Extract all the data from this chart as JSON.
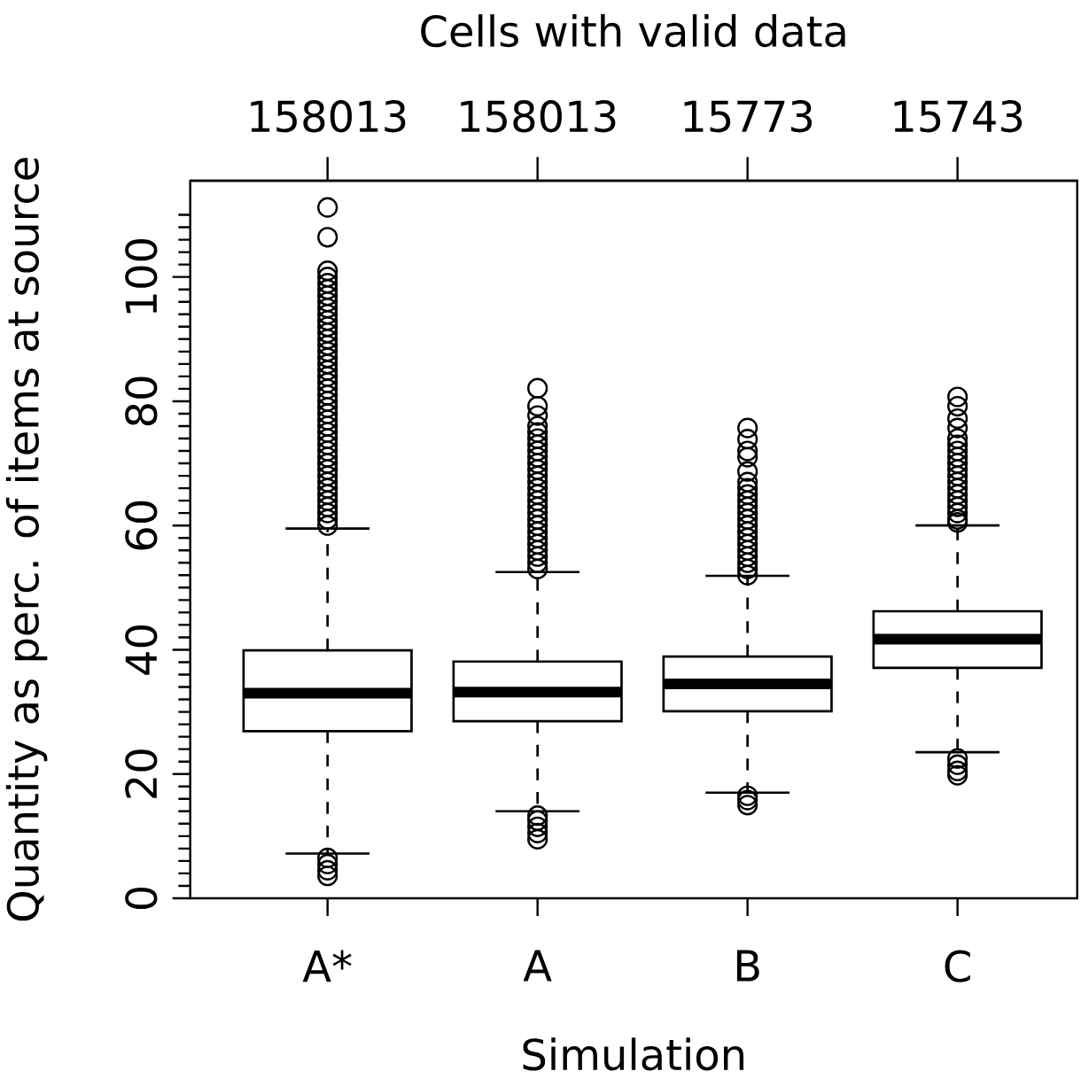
{
  "chart_data": {
    "type": "box",
    "categories": [
      "A*",
      "A",
      "B",
      "C"
    ],
    "xlabel": "Simulation",
    "ylabel": "Quantity as perc. of items at source",
    "x2label": "Cells with valid data",
    "annotations": [
      "158013",
      "158013",
      "15773",
      "15743"
    ],
    "ylim": [
      0,
      115.5
    ],
    "yticks": [
      0,
      {
        "value": 2,
        "label": null
      },
      {
        "value": 4,
        "label": null
      },
      {
        "value": 6,
        "label": null
      },
      {
        "value": 8,
        "label": null
      },
      {
        "value": 10,
        "label": null
      },
      {
        "value": 12,
        "label": null
      },
      {
        "value": 14,
        "label": null
      },
      {
        "value": 16,
        "label": null
      },
      {
        "value": 18,
        "label": null
      },
      20,
      {
        "value": 22,
        "label": null
      },
      {
        "value": 24,
        "label": null
      },
      {
        "value": 26,
        "label": null
      },
      {
        "value": 28,
        "label": null
      },
      {
        "value": 30,
        "label": null
      },
      {
        "value": 32,
        "label": null
      },
      {
        "value": 34,
        "label": null
      },
      {
        "value": 36,
        "label": null
      },
      {
        "value": 38,
        "label": null
      },
      40,
      {
        "value": 42,
        "label": null
      },
      {
        "value": 44,
        "label": null
      },
      {
        "value": 46,
        "label": null
      },
      {
        "value": 48,
        "label": null
      },
      {
        "value": 50,
        "label": null
      },
      {
        "value": 52,
        "label": null
      },
      {
        "value": 54,
        "label": null
      },
      {
        "value": 56,
        "label": null
      },
      {
        "value": 58,
        "label": null
      },
      60,
      {
        "value": 62,
        "label": null
      },
      {
        "value": 64,
        "label": null
      },
      {
        "value": 66,
        "label": null
      },
      {
        "value": 68,
        "label": null
      },
      {
        "value": 70,
        "label": null
      },
      {
        "value": 72,
        "label": null
      },
      {
        "value": 74,
        "label": null
      },
      {
        "value": 76,
        "label": null
      },
      {
        "value": 78,
        "label": null
      },
      80,
      {
        "value": 82,
        "label": null
      },
      {
        "value": 84,
        "label": null
      },
      {
        "value": 86,
        "label": null
      },
      {
        "value": 88,
        "label": null
      },
      {
        "value": 90,
        "label": null
      },
      {
        "value": 92,
        "label": null
      },
      {
        "value": 94,
        "label": null
      },
      {
        "value": 96,
        "label": null
      },
      {
        "value": 98,
        "label": null
      },
      100,
      {
        "value": 102,
        "label": null
      },
      {
        "value": 104,
        "label": null
      },
      {
        "value": 106,
        "label": null
      },
      {
        "value": 108,
        "label": null
      },
      {
        "value": 110,
        "label": null
      }
    ],
    "marker": "circle",
    "boxes": [
      {
        "low": 7.2,
        "q1": 26.9,
        "median": 33.0,
        "q3": 39.9,
        "high": 59.5,
        "outliers": [
          3.6,
          4.5,
          5.5,
          6.5,
          60,
          61,
          62,
          63,
          64,
          65,
          66,
          67,
          68,
          69,
          70,
          71,
          72,
          73,
          74,
          75,
          76,
          77,
          78,
          79,
          80,
          81,
          82,
          83,
          84,
          85,
          86,
          87,
          88,
          89,
          90,
          91,
          92,
          93,
          94,
          95,
          96,
          97,
          98,
          99,
          100,
          101,
          106.4,
          111.2
        ]
      },
      {
        "low": 14.0,
        "q1": 28.5,
        "median": 33.2,
        "q3": 38.1,
        "high": 52.5,
        "outliers": [
          9.5,
          10.5,
          11.5,
          12.5,
          13.3,
          53,
          54,
          55,
          56,
          57,
          58,
          59,
          60,
          61,
          62,
          63,
          64,
          65,
          66,
          67,
          68,
          69,
          70,
          71,
          72,
          73,
          74,
          75,
          76,
          77.7,
          79.2,
          82.1
        ]
      },
      {
        "low": 17.0,
        "q1": 30.1,
        "median": 34.5,
        "q3": 38.9,
        "high": 51.9,
        "outliers": [
          15.0,
          15.8,
          16.5,
          52,
          53,
          54,
          55,
          56,
          57,
          58,
          59,
          60,
          61,
          62,
          63,
          64,
          65,
          66,
          67,
          68.7,
          71,
          72,
          73.9,
          75.7
        ]
      },
      {
        "low": 23.5,
        "q1": 37.1,
        "median": 41.7,
        "q3": 46.2,
        "high": 60.0,
        "outliers": [
          19.8,
          20.5,
          21.5,
          22.5,
          60.5,
          61,
          62,
          63,
          64,
          65,
          66,
          67,
          68,
          69,
          70,
          71,
          72,
          73,
          74,
          75.7,
          77.2,
          79.2,
          80.7
        ]
      }
    ]
  }
}
